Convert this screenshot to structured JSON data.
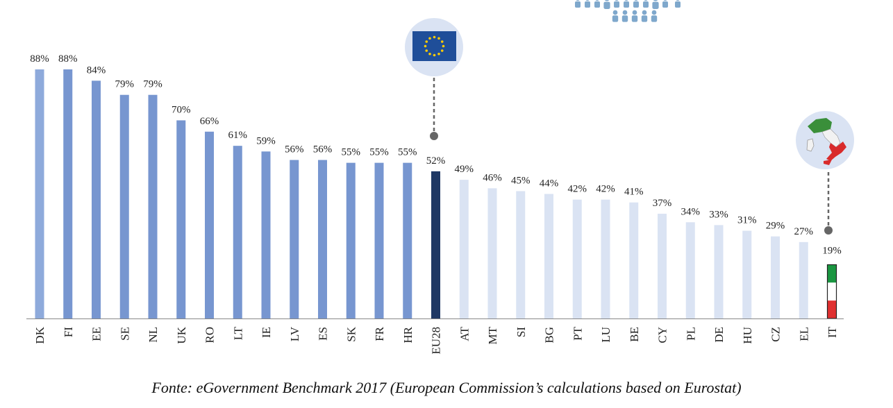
{
  "chart_data": {
    "type": "bar",
    "categories": [
      "DK",
      "FI",
      "EE",
      "SE",
      "NL",
      "UK",
      "RO",
      "LT",
      "IE",
      "LV",
      "ES",
      "SK",
      "FR",
      "HR",
      "EU28",
      "AT",
      "MT",
      "SI",
      "BG",
      "PT",
      "LU",
      "BE",
      "CY",
      "PL",
      "DE",
      "HU",
      "CZ",
      "EL",
      "IT"
    ],
    "values": [
      88,
      88,
      84,
      79,
      79,
      70,
      66,
      61,
      59,
      56,
      56,
      55,
      55,
      55,
      52,
      49,
      46,
      45,
      44,
      42,
      42,
      41,
      37,
      34,
      33,
      31,
      29,
      27,
      19
    ],
    "value_labels": [
      "88%",
      "88%",
      "84%",
      "79%",
      "79%",
      "70%",
      "66%",
      "61%",
      "59%",
      "56%",
      "56%",
      "55%",
      "55%",
      "55%",
      "52%",
      "49%",
      "46%",
      "45%",
      "44%",
      "42%",
      "42%",
      "41%",
      "37%",
      "34%",
      "33%",
      "31%",
      "29%",
      "27%",
      "19%"
    ],
    "ylim": [
      0,
      100
    ],
    "grid": false,
    "legend": "none",
    "colors": {
      "first_bar": "#8eaadb",
      "above_average": "#7796d0",
      "eu_average": "#1f3864",
      "below_average": "#dae3f3",
      "axis": "#888888",
      "marker": "#666666",
      "icon_circle": "#dae3f3",
      "people_icons": "#7fa8cc"
    },
    "highlights": {
      "eu28_icon": "eu-flag-icon",
      "it_icon": "italy-map-icon",
      "top_icon": "people-group-icon"
    }
  },
  "caption": {
    "source_part": "Fonte: eGovernment Benchmark 2017",
    "note_part": " (European Commission’s calculations based on Eurostat)"
  }
}
